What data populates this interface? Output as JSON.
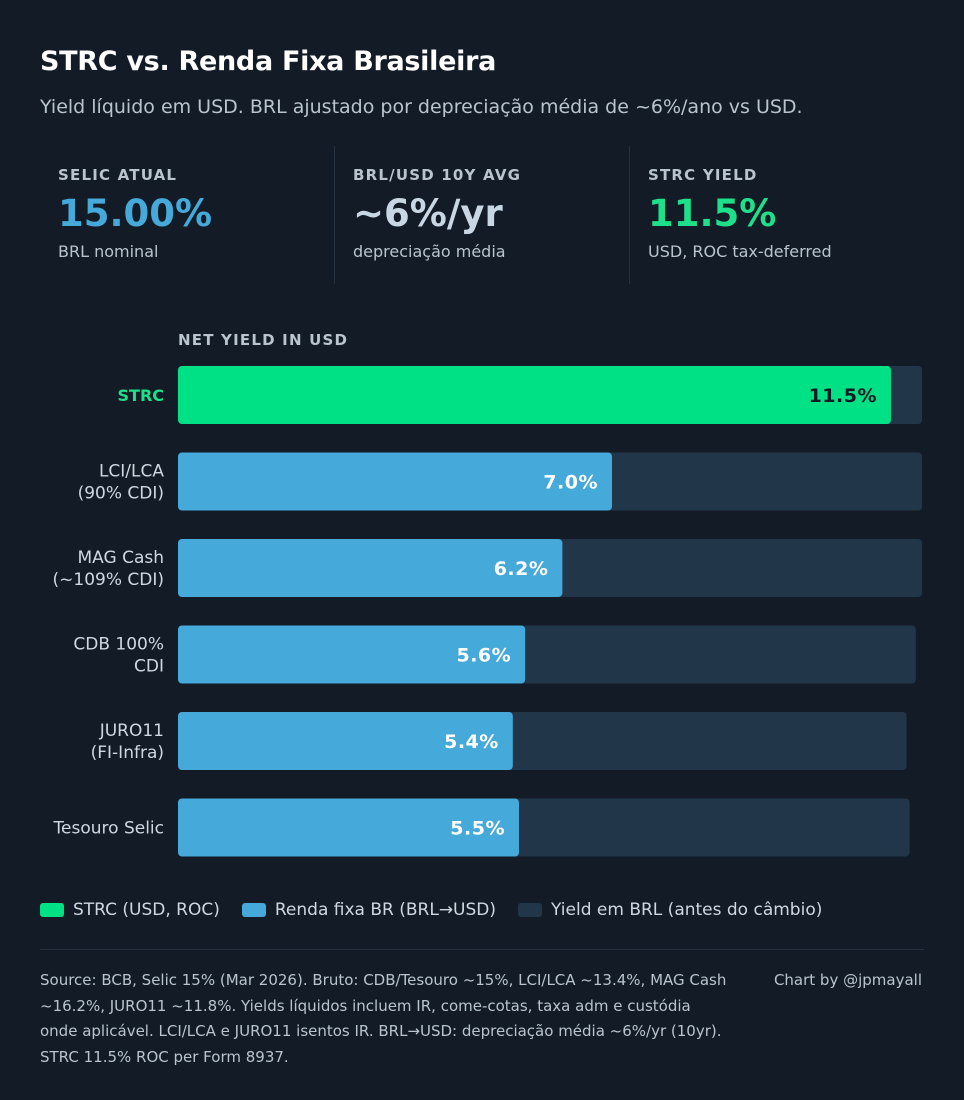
{
  "header": {
    "title": "STRC vs. Renda Fixa Brasileira",
    "subtitle": "Yield líquido em USD. BRL ajustado por depreciação média de ~6%/ano vs USD."
  },
  "stats": [
    {
      "label": "SELIC ATUAL",
      "value": "15.00%",
      "note": "BRL nominal",
      "color": "#45a9da"
    },
    {
      "label": "BRL/USD 10Y AVG",
      "value": "~6%/yr",
      "note": "depreciação média",
      "color": "#c9d6e3"
    },
    {
      "label": "STRC YIELD",
      "value": "11.5%",
      "note": "USD, ROC tax-deferred",
      "color": "#1ee08a"
    }
  ],
  "colors": {
    "strc": "#00e186",
    "brl_usd": "#45a9da",
    "brl_gross": "#22364a",
    "strc_label": "#1ee08a"
  },
  "chart_data": {
    "type": "bar",
    "orientation": "horizontal",
    "title": "NET YIELD IN USD",
    "xlim": [
      0,
      12
    ],
    "categories": [
      [
        "STRC"
      ],
      [
        "LCI/LCA",
        "(90% CDI)"
      ],
      [
        "MAG Cash",
        "(~109% CDI)"
      ],
      [
        "CDB 100%",
        "CDI"
      ],
      [
        "JURO11",
        "(FI-Infra)"
      ],
      [
        "Tesouro Selic"
      ]
    ],
    "series": [
      {
        "name": "Net yield in USD",
        "values": [
          11.5,
          7.0,
          6.2,
          5.6,
          5.4,
          5.5
        ],
        "labels": [
          "11.5%",
          "7.0%",
          "6.2%",
          "5.6%",
          "5.4%",
          "5.5%"
        ]
      },
      {
        "name": "Yield em BRL (antes do câmbio)",
        "values": [
          12.0,
          12.0,
          12.0,
          11.9,
          11.75,
          11.8
        ]
      }
    ]
  },
  "legend": [
    {
      "label": "STRC (USD, ROC)",
      "color": "#00e186"
    },
    {
      "label": "Renda fixa BR (BRL→USD)",
      "color": "#45a9da"
    },
    {
      "label": "Yield em BRL (antes do câmbio)",
      "color": "#22364a"
    }
  ],
  "footer": {
    "source": "Source: BCB, Selic 15% (Mar 2026). Bruto: CDB/Tesouro ~15%, LCI/LCA ~13.4%, MAG Cash ~16.2%, JURO11 ~11.8%. Yields líquidos incluem IR, come-cotas, taxa adm e custódia onde aplicável. LCI/LCA e JURO11 isentos IR. BRL→USD: depreciação média ~6%/yr (10yr). STRC 11.5% ROC per Form 8937.",
    "credit": "Chart by @jpmayall"
  }
}
